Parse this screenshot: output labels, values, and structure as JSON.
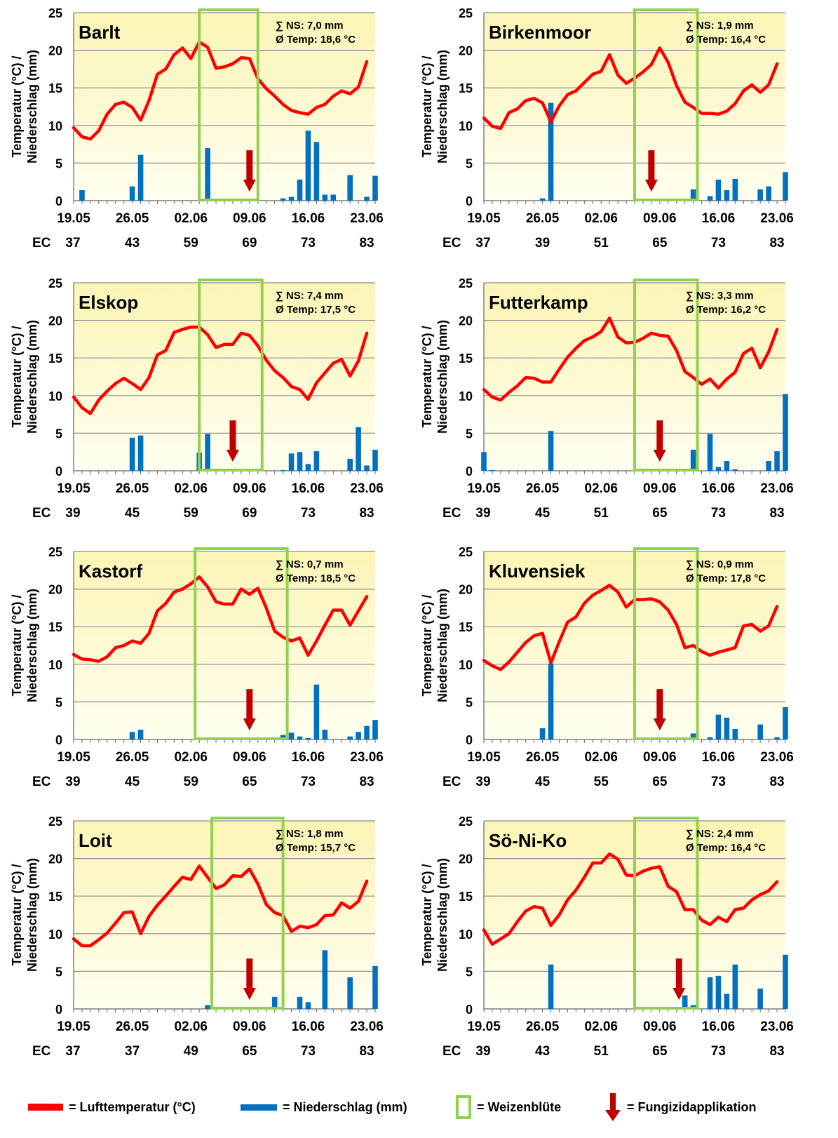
{
  "chart_data": [
    {
      "type": "line+bar",
      "station": "Barlt",
      "summary_ns": "∑ NS: 7,0 mm",
      "summary_temp": "Ø Temp: 18,6 °C",
      "ylabel": [
        "Temperatur (°C) /",
        "Niederschlag (mm)"
      ],
      "ylim": [
        0,
        25
      ],
      "yticks": [
        0,
        5,
        10,
        15,
        20,
        25
      ],
      "x_start": "19.05",
      "x_end": "23.06",
      "xticks": [
        "19.05",
        "26.05",
        "02.06",
        "09.06",
        "16.06",
        "23.06"
      ],
      "ec_label": "EC",
      "ec_stages": [
        "37",
        "43",
        "59",
        "69",
        "73",
        "83"
      ],
      "bloom_window": [
        15,
        22
      ],
      "fungicide_day": 21,
      "temperature": [
        9.7,
        8.5,
        8.2,
        9.3,
        11.5,
        12.8,
        13.1,
        12.4,
        10.7,
        13.3,
        16.8,
        17.5,
        19.4,
        20.3,
        18.9,
        21.1,
        20.4,
        17.6,
        17.8,
        18.2,
        19.0,
        18.9,
        16.2,
        14.9,
        13.9,
        12.8,
        12.0,
        11.7,
        11.5,
        12.4,
        12.8,
        13.9,
        14.6,
        14.2,
        15.1,
        18.5
      ],
      "precipitation": [
        {
          "day": 1,
          "v": 1.4
        },
        {
          "day": 7,
          "v": 1.9
        },
        {
          "day": 8,
          "v": 6.1
        },
        {
          "day": 16,
          "v": 7.0
        },
        {
          "day": 25,
          "v": 0.3
        },
        {
          "day": 26,
          "v": 0.5
        },
        {
          "day": 27,
          "v": 2.8
        },
        {
          "day": 28,
          "v": 9.3
        },
        {
          "day": 29,
          "v": 7.8
        },
        {
          "day": 30,
          "v": 0.8
        },
        {
          "day": 31,
          "v": 0.8
        },
        {
          "day": 33,
          "v": 3.4
        },
        {
          "day": 35,
          "v": 0.5
        },
        {
          "day": 36,
          "v": 3.3
        }
      ]
    },
    {
      "type": "line+bar",
      "station": "Birkenmoor",
      "summary_ns": "∑ NS: 1,9 mm",
      "summary_temp": "Ø Temp: 16,4 °C",
      "ylabel": [
        "Temperatur (°C) /",
        "Niederschlag (mm)"
      ],
      "ylim": [
        0,
        25
      ],
      "yticks": [
        0,
        5,
        10,
        15,
        20,
        25
      ],
      "x_start": "19.05",
      "x_end": "23.06",
      "xticks": [
        "19.05",
        "26.05",
        "02.06",
        "09.06",
        "16.06",
        "23.06"
      ],
      "ec_label": "EC",
      "ec_stages": [
        "37",
        "39",
        "51",
        "65",
        "73",
        "83"
      ],
      "bloom_window": [
        18,
        25.5
      ],
      "fungicide_day": 20,
      "temperature": [
        11.0,
        9.9,
        9.6,
        11.7,
        12.2,
        13.3,
        13.6,
        13.0,
        10.5,
        12.6,
        14.1,
        14.6,
        15.7,
        16.8,
        17.2,
        19.4,
        16.7,
        15.6,
        16.3,
        17.1,
        18.1,
        20.3,
        18.4,
        15.3,
        13.1,
        12.4,
        11.6,
        11.6,
        11.5,
        11.9,
        12.9,
        14.6,
        15.4,
        14.4,
        15.4,
        18.2
      ],
      "precipitation": [
        {
          "day": 7,
          "v": 0.3
        },
        {
          "day": 8,
          "v": 13.0
        },
        {
          "day": 25,
          "v": 1.5
        },
        {
          "day": 27,
          "v": 0.6
        },
        {
          "day": 28,
          "v": 2.8
        },
        {
          "day": 29,
          "v": 1.4
        },
        {
          "day": 30,
          "v": 2.9
        },
        {
          "day": 33,
          "v": 1.5
        },
        {
          "day": 34,
          "v": 1.9
        },
        {
          "day": 36,
          "v": 3.8
        }
      ]
    },
    {
      "type": "line+bar",
      "station": "Elskop",
      "summary_ns": "∑ NS: 7,4 mm",
      "summary_temp": "Ø Temp: 17,5 °C",
      "ylabel": [
        "Temperatur (°C) /",
        "Niederschlag (mm)"
      ],
      "ylim": [
        0,
        25
      ],
      "yticks": [
        0,
        5,
        10,
        15,
        20,
        25
      ],
      "x_start": "19.05",
      "x_end": "23.06",
      "xticks": [
        "19.05",
        "26.05",
        "02.06",
        "09.06",
        "16.06",
        "23.06"
      ],
      "ec_label": "EC",
      "ec_stages": [
        "39",
        "45",
        "59",
        "69",
        "73",
        "83"
      ],
      "bloom_window": [
        15,
        22.5
      ],
      "fungicide_day": 19,
      "temperature": [
        9.8,
        8.4,
        7.6,
        9.4,
        10.6,
        11.6,
        12.3,
        11.6,
        10.8,
        12.4,
        15.4,
        16.0,
        18.4,
        18.8,
        19.1,
        19.1,
        18.1,
        16.4,
        16.8,
        16.8,
        18.3,
        18.0,
        16.6,
        14.7,
        13.3,
        12.4,
        11.2,
        10.8,
        9.5,
        11.7,
        13.0,
        14.3,
        14.8,
        12.6,
        14.6,
        18.3
      ],
      "precipitation": [
        {
          "day": 15,
          "v": 2.4
        },
        {
          "day": 16,
          "v": 4.9
        },
        {
          "day": 25,
          "v": 0.1
        },
        {
          "day": 26,
          "v": 2.3
        },
        {
          "day": 27,
          "v": 2.5
        },
        {
          "day": 28,
          "v": 0.9
        },
        {
          "day": 29,
          "v": 2.6
        },
        {
          "day": 33,
          "v": 1.6
        },
        {
          "day": 34,
          "v": 5.8
        },
        {
          "day": 35,
          "v": 0.7
        },
        {
          "day": 36,
          "v": 2.8
        },
        {
          "day": 7,
          "v": 4.4
        },
        {
          "day": 8,
          "v": 4.7
        }
      ]
    },
    {
      "type": "line+bar",
      "station": "Futterkamp",
      "summary_ns": "∑ NS: 3,3 mm",
      "summary_temp": "Ø Temp: 16,2 °C",
      "ylabel": [
        "Temperatur (°C) /",
        "Niederschlag (mm)"
      ],
      "ylim": [
        0,
        25
      ],
      "yticks": [
        0,
        5,
        10,
        15,
        20,
        25
      ],
      "x_start": "19.05",
      "x_end": "23.06",
      "xticks": [
        "19.05",
        "26.05",
        "02.06",
        "09.06",
        "16.06",
        "23.06"
      ],
      "ec_label": "EC",
      "ec_stages": [
        "39",
        "45",
        "51",
        "65",
        "73",
        "83"
      ],
      "bloom_window": [
        18,
        25.5
      ],
      "fungicide_day": 21,
      "temperature": [
        10.8,
        9.8,
        9.4,
        10.4,
        11.3,
        12.4,
        12.3,
        11.8,
        11.8,
        13.5,
        15.1,
        16.3,
        17.3,
        17.8,
        18.5,
        20.3,
        17.8,
        17.0,
        17.1,
        17.6,
        18.3,
        18.0,
        17.9,
        16.0,
        13.2,
        12.4,
        11.5,
        12.2,
        11.0,
        12.2,
        13.1,
        15.6,
        16.3,
        13.7,
        15.8,
        18.8
      ],
      "precipitation": [
        {
          "day": 0,
          "v": 2.5
        },
        {
          "day": 1,
          "v": 0.1
        },
        {
          "day": 8,
          "v": 5.3
        },
        {
          "day": 25,
          "v": 2.8
        },
        {
          "day": 27,
          "v": 4.9
        },
        {
          "day": 28,
          "v": 0.5
        },
        {
          "day": 29,
          "v": 1.3
        },
        {
          "day": 30,
          "v": 0.2
        },
        {
          "day": 34,
          "v": 1.3
        },
        {
          "day": 35,
          "v": 2.6
        },
        {
          "day": 36,
          "v": 10.2
        }
      ]
    },
    {
      "type": "line+bar",
      "station": "Kastorf",
      "summary_ns": "∑ NS: 0,7 mm",
      "summary_temp": "Ø Temp: 18,5 °C",
      "ylabel": [
        "Temperatur (°C) /",
        "Niederschlag (mm)"
      ],
      "ylim": [
        0,
        25
      ],
      "yticks": [
        0,
        5,
        10,
        15,
        20,
        25
      ],
      "x_start": "19.05",
      "x_end": "23.06",
      "xticks": [
        "19.05",
        "26.05",
        "02.06",
        "09.06",
        "16.06",
        "23.06"
      ],
      "ec_label": "EC",
      "ec_stages": [
        "39",
        "45",
        "59",
        "65",
        "73",
        "83"
      ],
      "bloom_window": [
        14.5,
        25.5
      ],
      "fungicide_day": 21,
      "temperature": [
        11.3,
        10.7,
        10.6,
        10.4,
        11.0,
        12.2,
        12.5,
        13.1,
        12.8,
        14.1,
        17.1,
        18.1,
        19.6,
        20.0,
        20.7,
        21.6,
        20.3,
        18.3,
        18.0,
        18.0,
        20.0,
        19.3,
        20.1,
        17.5,
        14.4,
        13.6,
        13.1,
        13.5,
        11.2,
        13.1,
        15.2,
        17.2,
        17.2,
        15.2,
        17.1,
        19.0
      ],
      "precipitation": [
        {
          "day": 7,
          "v": 1.0
        },
        {
          "day": 8,
          "v": 1.3
        },
        {
          "day": 25,
          "v": 0.6
        },
        {
          "day": 26,
          "v": 0.9
        },
        {
          "day": 27,
          "v": 0.4
        },
        {
          "day": 28,
          "v": 0.2
        },
        {
          "day": 29,
          "v": 7.3
        },
        {
          "day": 30,
          "v": 1.3
        },
        {
          "day": 33,
          "v": 0.4
        },
        {
          "day": 34,
          "v": 1.0
        },
        {
          "day": 35,
          "v": 1.8
        },
        {
          "day": 36,
          "v": 2.6
        }
      ]
    },
    {
      "type": "line+bar",
      "station": "Kluvensiek",
      "summary_ns": "∑ NS: 0,9  mm",
      "summary_temp": "Ø Temp: 17,8 °C",
      "ylabel": [
        "Temperatur (°C) /",
        "Niederschlag (mm)"
      ],
      "ylim": [
        0,
        25
      ],
      "yticks": [
        0,
        5,
        10,
        15,
        20,
        25
      ],
      "x_start": "19.05",
      "x_end": "23.06",
      "xticks": [
        "19.05",
        "26.05",
        "02.06",
        "09.06",
        "16.06",
        "23.06"
      ],
      "ec_label": "EC",
      "ec_stages": [
        "39",
        "45",
        "55",
        "65",
        "73",
        "83"
      ],
      "bloom_window": [
        18,
        25.5
      ],
      "fungicide_day": 21,
      "temperature": [
        10.5,
        9.8,
        9.3,
        10.3,
        11.6,
        12.9,
        13.8,
        14.1,
        10.2,
        13.0,
        15.6,
        16.3,
        18.1,
        19.2,
        19.8,
        20.5,
        19.6,
        17.6,
        18.6,
        18.6,
        18.7,
        18.3,
        17.2,
        15.3,
        12.2,
        12.5,
        11.7,
        11.2,
        11.6,
        11.9,
        12.2,
        15.1,
        15.3,
        14.4,
        15.1,
        17.7
      ],
      "precipitation": [
        {
          "day": 7,
          "v": 1.5
        },
        {
          "day": 8,
          "v": 10.1
        },
        {
          "day": 25,
          "v": 0.8
        },
        {
          "day": 27,
          "v": 0.3
        },
        {
          "day": 28,
          "v": 3.3
        },
        {
          "day": 29,
          "v": 2.9
        },
        {
          "day": 30,
          "v": 1.4
        },
        {
          "day": 33,
          "v": 2.0
        },
        {
          "day": 35,
          "v": 0.3
        },
        {
          "day": 36,
          "v": 4.3
        }
      ]
    },
    {
      "type": "line+bar",
      "station": "Loit",
      "summary_ns": "∑ NS: 1,8 mm",
      "summary_temp": "Ø Temp: 15,7 °C",
      "ylabel": [
        "Temperatur (°C) /",
        "Niederschlag (mm)"
      ],
      "ylim": [
        0,
        25
      ],
      "yticks": [
        0,
        5,
        10,
        15,
        20,
        25
      ],
      "x_start": "19.05",
      "x_end": "23.06",
      "xticks": [
        "19.05",
        "26.05",
        "02.06",
        "09.06",
        "16.06",
        "23.06"
      ],
      "ec_label": "EC",
      "ec_stages": [
        "37",
        "37",
        "49",
        "65",
        "73",
        "83"
      ],
      "bloom_window": [
        16.5,
        25
      ],
      "fungicide_day": 21,
      "temperature": [
        9.3,
        8.4,
        8.4,
        9.2,
        10.1,
        11.4,
        12.8,
        12.9,
        10.0,
        12.3,
        13.8,
        15.0,
        16.3,
        17.5,
        17.2,
        19.0,
        17.5,
        16.0,
        16.5,
        17.7,
        17.6,
        18.6,
        16.6,
        13.9,
        12.8,
        12.4,
        10.3,
        11.0,
        10.8,
        11.2,
        12.4,
        12.5,
        14.1,
        13.4,
        14.3,
        17.0
      ],
      "precipitation": [
        {
          "day": 16,
          "v": 0.5
        },
        {
          "day": 24,
          "v": 1.6
        },
        {
          "day": 27,
          "v": 1.6
        },
        {
          "day": 28,
          "v": 0.9
        },
        {
          "day": 30,
          "v": 7.8
        },
        {
          "day": 33,
          "v": 4.2
        },
        {
          "day": 36,
          "v": 5.7
        }
      ]
    },
    {
      "type": "line+bar",
      "station": "Sö-Ni-Ko",
      "summary_ns": "∑ NS: 2,4 mm",
      "summary_temp": "Ø Temp: 16,4 °C",
      "ylabel": [
        "Temperatur (°C) /",
        "Niederschlag (mm)"
      ],
      "ylim": [
        0,
        25
      ],
      "yticks": [
        0,
        5,
        10,
        15,
        20,
        25
      ],
      "x_start": "19.05",
      "x_end": "23.06",
      "xticks": [
        "19.05",
        "26.05",
        "02.06",
        "09.06",
        "16.06",
        "23.06"
      ],
      "ec_label": "EC",
      "ec_stages": [
        "39",
        "43",
        "51",
        "65",
        "73",
        "83"
      ],
      "bloom_window": [
        18,
        25.5
      ],
      "fungicide_day": 23.3,
      "temperature": [
        10.5,
        8.6,
        9.3,
        10.0,
        11.6,
        13.0,
        13.6,
        13.4,
        11.1,
        12.5,
        14.5,
        15.8,
        17.5,
        19.4,
        19.4,
        20.6,
        19.9,
        17.8,
        17.7,
        18.3,
        18.7,
        18.9,
        16.3,
        15.6,
        13.2,
        13.2,
        11.8,
        11.2,
        12.2,
        11.6,
        13.2,
        13.4,
        14.5,
        15.2,
        15.7,
        16.9
      ],
      "precipitation": [
        {
          "day": 8,
          "v": 5.9
        },
        {
          "day": 24,
          "v": 1.8
        },
        {
          "day": 25,
          "v": 0.5
        },
        {
          "day": 27,
          "v": 4.2
        },
        {
          "day": 28,
          "v": 4.4
        },
        {
          "day": 29,
          "v": 2.0
        },
        {
          "day": 30,
          "v": 5.9
        },
        {
          "day": 33,
          "v": 2.7
        },
        {
          "day": 36,
          "v": 7.2
        }
      ]
    }
  ],
  "legend": {
    "temperature": "= Lufttemperatur (°C)",
    "precipitation": "= Niederschlag (mm)",
    "bloom": "= Weizenblüte",
    "fungicide": "= Fungizidapplikation"
  },
  "colors": {
    "temperature": "#ff0000",
    "precipitation": "#0070c0",
    "bloom": "#92d050",
    "fungicide": "#c00000",
    "plot_top": "#fbf5b5",
    "plot_bottom": "#fffef0",
    "grid": "#8c8c8c"
  }
}
